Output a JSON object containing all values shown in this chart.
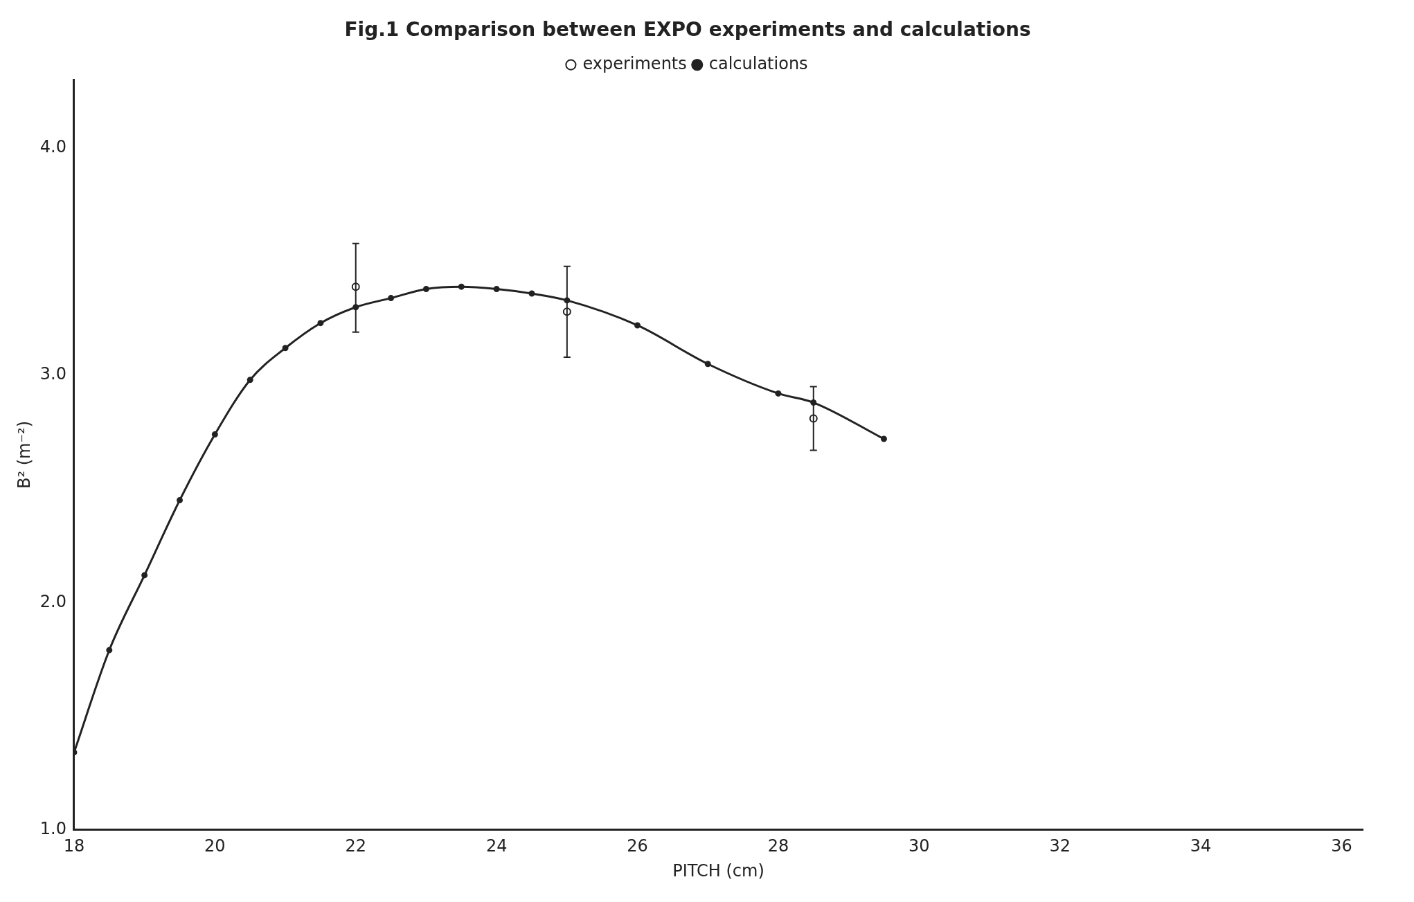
{
  "chart_data": {
    "type": "line",
    "title": "Fig.1 Comparison between EXPO experiments and calculations",
    "xlabel": "PITCH (cm)",
    "ylabel": "B² (m⁻²)",
    "xlim": [
      18,
      36.3
    ],
    "xticks": [
      18,
      20,
      22,
      24,
      26,
      28,
      30,
      32,
      34,
      36
    ],
    "ylim": [
      1,
      4.3
    ],
    "yticks": [
      {
        "value": 1,
        "label": "1.0"
      },
      {
        "value": 2,
        "label": "2.0"
      },
      {
        "value": 3,
        "label": "3.0"
      },
      {
        "value": 4,
        "label": "4.0"
      }
    ],
    "grid": false,
    "legend": "top",
    "line_style": "solid",
    "series": [
      {
        "name": "experiments",
        "type": "scatter",
        "marker": "circle",
        "color": "#222222",
        "x": [
          22,
          25,
          28.5
        ],
        "values": [
          3.39,
          3.28,
          2.81
        ],
        "errors": [
          [
            3.19,
            3.58
          ],
          [
            3.08,
            3.48
          ],
          [
            2.67,
            2.95
          ]
        ]
      },
      {
        "name": "calculations",
        "marker": "circle",
        "color": "#222222",
        "x": [
          18,
          18.5,
          19,
          19.5,
          20,
          20.5,
          21,
          21.5,
          22,
          22.5,
          23,
          23.5,
          24,
          24.5,
          25,
          26,
          27,
          28,
          28.5,
          29.5
        ],
        "values": [
          1.34,
          1.79,
          2.12,
          2.45,
          2.74,
          2.98,
          3.12,
          3.23,
          3.3,
          3.34,
          3.38,
          3.39,
          3.38,
          3.36,
          3.33,
          3.22,
          3.05,
          2.92,
          2.88,
          2.72
        ]
      }
    ]
  }
}
